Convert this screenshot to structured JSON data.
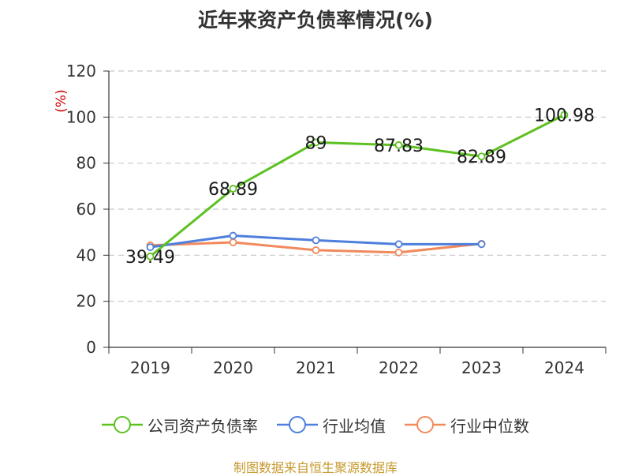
{
  "title": "近年来资产负债率情况(%)",
  "source": "制图数据来自恒生聚源数据库",
  "chart_data": {
    "type": "line",
    "title": "近年来资产负债率情况(%)",
    "ylabel": "(%)",
    "xlabel": "",
    "categories": [
      "2019",
      "2020",
      "2021",
      "2022",
      "2023",
      "2024"
    ],
    "ylim": [
      0,
      120
    ],
    "yticks": [
      0,
      20,
      40,
      60,
      80,
      100,
      120
    ],
    "grid": true,
    "legend_position": "bottom",
    "series": [
      {
        "name": "公司资产负债率",
        "color": "#5cc121",
        "values": [
          39.49,
          68.89,
          89,
          87.83,
          82.89,
          100.98
        ],
        "labels": [
          "39.49",
          "68.89",
          "89",
          "87.83",
          "82.89",
          "100.98"
        ]
      },
      {
        "name": "行业均值",
        "color": "#4e7fdc",
        "values": [
          43.5,
          48.5,
          46.5,
          44.8,
          44.8,
          null
        ]
      },
      {
        "name": "行业中位数",
        "color": "#f08a5d",
        "values": [
          44.3,
          45.6,
          42.2,
          41.2,
          45.0,
          null
        ]
      }
    ]
  }
}
